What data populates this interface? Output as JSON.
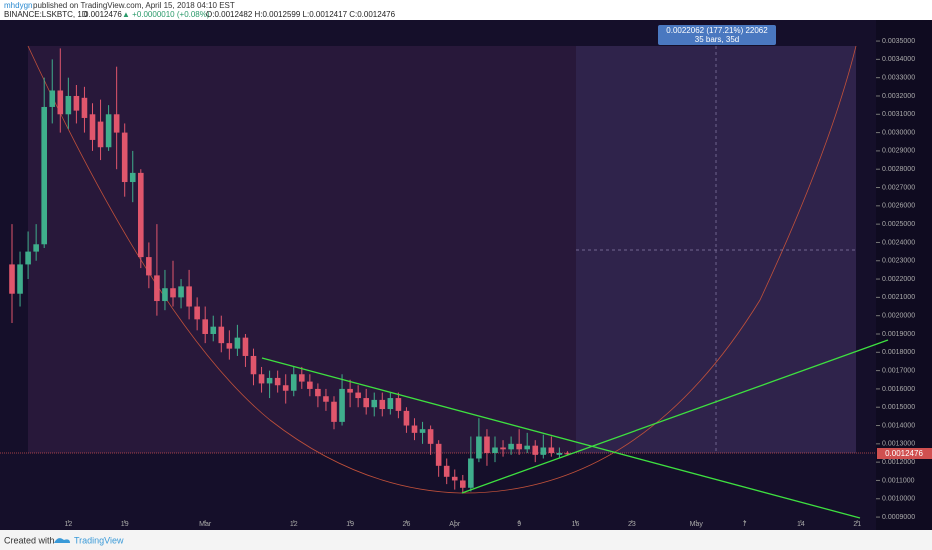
{
  "header": {
    "author": "mhdygn",
    "published": "published on TradingView.com, April 15, 2018 04:10 EST",
    "symbol": "BINANCE:LSKBTC, 1D",
    "last": "0.0012476",
    "change": "▲ +0.0000010 (+0.08%)",
    "ohlc": "O:0.0012482 H:0.0012599 L:0.0012417 C:0.0012476"
  },
  "measure": {
    "line1": "0.0022062 (177.21%) 22062",
    "line2": "35 bars, 35d"
  },
  "price_label": "0.0012476",
  "footer": {
    "created": "Created with",
    "brand": "TradingView"
  },
  "chart_data": {
    "type": "candlestick",
    "x": [
      "Feb 5",
      "Feb 6",
      "Feb 7",
      "Feb 8",
      "Feb 9",
      "Feb 10",
      "Feb 11",
      "Feb 12",
      "Feb 13",
      "Feb 14",
      "Feb 15",
      "Feb 16",
      "Feb 17",
      "Feb 18",
      "Feb 19",
      "Feb 20",
      "Feb 21",
      "Feb 22",
      "Feb 23",
      "Feb 24",
      "Feb 25",
      "Feb 26",
      "Feb 27",
      "Feb 28",
      "Mar 1",
      "Mar 2",
      "Mar 3",
      "Mar 4",
      "Mar 5",
      "Mar 6",
      "Mar 7",
      "Mar 8",
      "Mar 9",
      "Mar 10",
      "Mar 11",
      "Mar 12",
      "Mar 13",
      "Mar 14",
      "Mar 15",
      "Mar 16",
      "Mar 17",
      "Mar 18",
      "Mar 19",
      "Mar 20",
      "Mar 21",
      "Mar 22",
      "Mar 23",
      "Mar 24",
      "Mar 25",
      "Mar 26",
      "Mar 27",
      "Mar 28",
      "Mar 29",
      "Mar 30",
      "Mar 31",
      "Apr 1",
      "Apr 2",
      "Apr 3",
      "Apr 4",
      "Apr 5",
      "Apr 6",
      "Apr 7",
      "Apr 8",
      "Apr 9",
      "Apr 10",
      "Apr 11",
      "Apr 12",
      "Apr 13",
      "Apr 14",
      "Apr 15"
    ],
    "open": [
      0.00228,
      0.00212,
      0.00228,
      0.00235,
      0.00239,
      0.00314,
      0.00323,
      0.0031,
      0.0032,
      0.00319,
      0.0031,
      0.00306,
      0.00292,
      0.0031,
      0.003,
      0.00273,
      0.00278,
      0.00232,
      0.00222,
      0.00208,
      0.00215,
      0.0021,
      0.00216,
      0.00205,
      0.00198,
      0.0019,
      0.00194,
      0.00185,
      0.00182,
      0.00188,
      0.00178,
      0.00168,
      0.00163,
      0.00166,
      0.00162,
      0.00159,
      0.00168,
      0.00164,
      0.0016,
      0.00156,
      0.00153,
      0.00142,
      0.0016,
      0.00158,
      0.00155,
      0.0015,
      0.00154,
      0.00149,
      0.00155,
      0.00148,
      0.0014,
      0.00136,
      0.00138,
      0.0013,
      0.00118,
      0.00112,
      0.0011,
      0.00106,
      0.00122,
      0.00134,
      0.00125,
      0.00128,
      0.00127,
      0.0013,
      0.00127,
      0.00129,
      0.00124,
      0.00128,
      0.00124,
      0.0012482
    ],
    "high": [
      0.0025,
      0.00235,
      0.00246,
      0.0025,
      0.0033,
      0.0034,
      0.00346,
      0.0033,
      0.00326,
      0.00325,
      0.00316,
      0.00318,
      0.00315,
      0.00336,
      0.00305,
      0.0029,
      0.0028,
      0.0024,
      0.0025,
      0.00225,
      0.0023,
      0.0022,
      0.00225,
      0.0021,
      0.00205,
      0.002,
      0.002,
      0.00192,
      0.00195,
      0.0019,
      0.00182,
      0.00172,
      0.0017,
      0.0017,
      0.00168,
      0.00172,
      0.00172,
      0.00168,
      0.00163,
      0.0016,
      0.00156,
      0.00168,
      0.00165,
      0.00162,
      0.0016,
      0.00158,
      0.00158,
      0.00158,
      0.00158,
      0.0015,
      0.00144,
      0.00142,
      0.0014,
      0.00132,
      0.00122,
      0.00116,
      0.00113,
      0.00134,
      0.00144,
      0.00138,
      0.00134,
      0.00132,
      0.00134,
      0.00138,
      0.00136,
      0.00132,
      0.00135,
      0.00134,
      0.00128,
      0.0012599
    ],
    "low": [
      0.00196,
      0.00205,
      0.0022,
      0.0023,
      0.00237,
      0.00305,
      0.003,
      0.00302,
      0.00305,
      0.003,
      0.0029,
      0.00285,
      0.0029,
      0.0028,
      0.00265,
      0.00262,
      0.00226,
      0.00215,
      0.002,
      0.00203,
      0.00205,
      0.00204,
      0.00198,
      0.00192,
      0.00185,
      0.00186,
      0.0018,
      0.00176,
      0.00178,
      0.00172,
      0.00162,
      0.00158,
      0.00155,
      0.00158,
      0.00152,
      0.00156,
      0.0016,
      0.00156,
      0.0015,
      0.00148,
      0.00138,
      0.0014,
      0.0015,
      0.0015,
      0.00146,
      0.00145,
      0.00145,
      0.00146,
      0.00144,
      0.00136,
      0.00132,
      0.0013,
      0.00124,
      0.00112,
      0.00108,
      0.00105,
      0.00103,
      0.00104,
      0.0012,
      0.00118,
      0.0012,
      0.00123,
      0.00124,
      0.00124,
      0.00125,
      0.0012,
      0.00122,
      0.00123,
      0.00122,
      0.0012417
    ],
    "close": [
      0.00212,
      0.00228,
      0.00235,
      0.00239,
      0.00314,
      0.00323,
      0.0031,
      0.0032,
      0.00312,
      0.00308,
      0.00296,
      0.00292,
      0.0031,
      0.003,
      0.00273,
      0.00278,
      0.00232,
      0.00222,
      0.00208,
      0.00215,
      0.0021,
      0.00216,
      0.00205,
      0.00198,
      0.0019,
      0.00194,
      0.00185,
      0.00182,
      0.00188,
      0.00178,
      0.00168,
      0.00163,
      0.00166,
      0.00162,
      0.00159,
      0.00168,
      0.00164,
      0.0016,
      0.00156,
      0.00153,
      0.00142,
      0.0016,
      0.00158,
      0.00155,
      0.0015,
      0.00154,
      0.00149,
      0.00155,
      0.00148,
      0.0014,
      0.00136,
      0.00138,
      0.0013,
      0.00118,
      0.00112,
      0.0011,
      0.00106,
      0.00122,
      0.00134,
      0.00125,
      0.00128,
      0.00127,
      0.0013,
      0.00127,
      0.00129,
      0.00124,
      0.00128,
      0.00125,
      0.00125,
      0.0012476
    ],
    "up_color": "#3fae8c",
    "down_color": "#e0566c",
    "ylim": [
      0.000884,
      0.003615
    ],
    "yticks": [
      {
        "value": 0.0009,
        "label": "0.0009000"
      },
      {
        "value": 0.001,
        "label": "0.0010000"
      },
      {
        "value": 0.0011,
        "label": "0.0011000"
      },
      {
        "value": 0.0012,
        "label": "0.0012000"
      },
      {
        "value": 0.0013,
        "label": "0.0013000"
      },
      {
        "value": 0.0014,
        "label": "0.0014000"
      },
      {
        "value": 0.0015,
        "label": "0.0015000"
      },
      {
        "value": 0.0016,
        "label": "0.0016000"
      },
      {
        "value": 0.0017,
        "label": "0.0017000"
      },
      {
        "value": 0.0018,
        "label": "0.0018000"
      },
      {
        "value": 0.0019,
        "label": "0.0019000"
      },
      {
        "value": 0.002,
        "label": "0.0020000"
      },
      {
        "value": 0.0021,
        "label": "0.0021000"
      },
      {
        "value": 0.0022,
        "label": "0.0022000"
      },
      {
        "value": 0.0023,
        "label": "0.0023000"
      },
      {
        "value": 0.0024,
        "label": "0.0024000"
      },
      {
        "value": 0.0025,
        "label": "0.0025000"
      },
      {
        "value": 0.0026,
        "label": "0.0026000"
      },
      {
        "value": 0.0027,
        "label": "0.0027000"
      },
      {
        "value": 0.0028,
        "label": "0.0028000"
      },
      {
        "value": 0.0029,
        "label": "0.0029000"
      },
      {
        "value": 0.003,
        "label": "0.0030000"
      },
      {
        "value": 0.0031,
        "label": "0.0031000"
      },
      {
        "value": 0.0032,
        "label": "0.0032000"
      },
      {
        "value": 0.0033,
        "label": "0.0033000"
      },
      {
        "value": 0.0034,
        "label": "0.0034000"
      },
      {
        "value": 0.0035,
        "label": "0.0035000"
      }
    ],
    "xticks": [
      {
        "value": "Feb 12",
        "label": "12"
      },
      {
        "value": "Feb 19",
        "label": "19"
      },
      {
        "value": "Mar 1",
        "label": "Mar"
      },
      {
        "value": "Mar 12",
        "label": "12"
      },
      {
        "value": "Mar 19",
        "label": "19"
      },
      {
        "value": "Mar 26",
        "label": "26"
      },
      {
        "value": "Apr 1",
        "label": "Apr"
      },
      {
        "value": "Apr 9",
        "label": "9"
      },
      {
        "value": "Apr 16",
        "label": "16"
      },
      {
        "value": "Apr 23",
        "label": "23"
      },
      {
        "value": "May 1",
        "label": "May"
      },
      {
        "value": "May 7",
        "label": "7"
      },
      {
        "value": "May 14",
        "label": "14"
      },
      {
        "value": "May 21",
        "label": "21"
      }
    ]
  }
}
